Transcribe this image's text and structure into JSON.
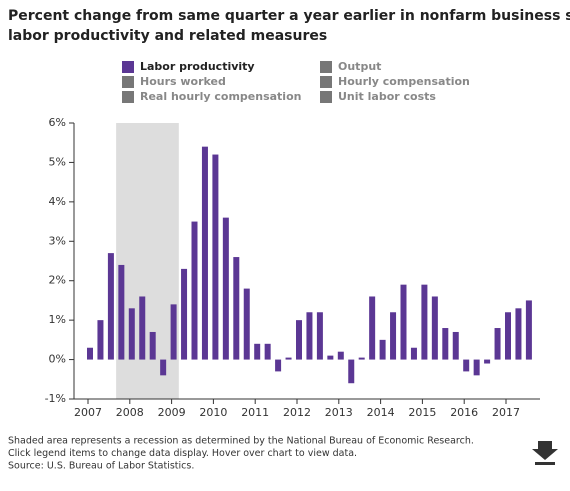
{
  "chart_data": {
    "type": "bar",
    "title": [
      "Percent change from same quarter a year earlier in nonfarm business sector",
      "labor productivity and related measures"
    ],
    "categories": [
      "2007",
      null,
      null,
      null,
      "2008",
      null,
      null,
      null,
      "2009",
      null,
      null,
      null,
      "2010",
      null,
      null,
      null,
      "2011",
      null,
      null,
      null,
      "2012",
      null,
      null,
      null,
      "2013",
      null,
      null,
      null,
      "2014",
      null,
      null,
      null,
      "2015",
      null,
      null,
      null,
      "2016",
      null,
      null,
      null,
      "2017",
      null,
      null
    ],
    "series": [
      {
        "name": "Labor productivity",
        "color": "#5b3794",
        "values": [
          0.3,
          1.0,
          2.7,
          2.4,
          1.3,
          1.6,
          0.7,
          -0.4,
          1.4,
          2.3,
          3.5,
          5.4,
          5.2,
          3.6,
          2.6,
          1.8,
          0.4,
          0.4,
          -0.3,
          0.05,
          1.0,
          1.2,
          1.2,
          0.1,
          0.2,
          -0.6,
          0.05,
          1.6,
          0.5,
          1.2,
          1.9,
          0.3,
          1.9,
          1.6,
          0.8,
          0.7,
          -0.3,
          -0.4,
          -0.1,
          0.8,
          1.2,
          1.3,
          1.5
        ]
      }
    ],
    "inactive_series": [
      {
        "name": "Output",
        "color": "#777777"
      },
      {
        "name": "Hours worked",
        "color": "#777777"
      },
      {
        "name": "Hourly compensation",
        "color": "#777777"
      },
      {
        "name": "Real hourly compensation",
        "color": "#777777"
      },
      {
        "name": "Unit labor costs",
        "color": "#777777"
      }
    ],
    "shaded_region": {
      "from": 3,
      "to": 9,
      "color": "#dddddd"
    },
    "ylim": [
      -1,
      6
    ],
    "yticks": [
      {
        "value": -1,
        "label": "-1%"
      },
      {
        "value": 0,
        "label": "0%"
      },
      {
        "value": 1,
        "label": "1%"
      },
      {
        "value": 2,
        "label": "2%"
      },
      {
        "value": 3,
        "label": "3%"
      },
      {
        "value": 4,
        "label": "4%"
      },
      {
        "value": 5,
        "label": "5%"
      },
      {
        "value": 6,
        "label": "6%"
      }
    ],
    "notes": [
      "Shaded area represents a recession as determined by the National Bureau of Economic Research.",
      "Click legend items to change data display. Hover over chart to view data.",
      "Source: U.S. Bureau of Labor Statistics."
    ]
  }
}
